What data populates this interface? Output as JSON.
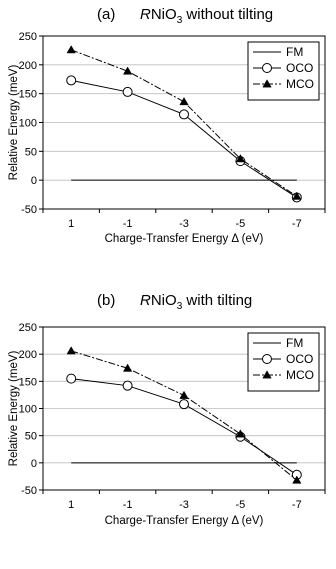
{
  "chart_data": [
    {
      "type": "line",
      "panel_label": "(a)",
      "title_prefix": "R",
      "title_main": "NiO",
      "title_sub": "3",
      "title_suffix": " without tilting",
      "xlabel": "Charge-Transfer Energy Δ (eV)",
      "ylabel": "Relative Energy (meV)",
      "categories": [
        "1",
        "-1",
        "-3",
        "-5",
        "-7"
      ],
      "ylim": [
        -50,
        250
      ],
      "yticks": [
        "-50",
        "0",
        "50",
        "100",
        "150",
        "200",
        "250"
      ],
      "grid": "horizontal",
      "legend_position": "top-right",
      "series": [
        {
          "name": "FM",
          "marker": "none",
          "line": "solid",
          "values": [
            0,
            0,
            0,
            0,
            0
          ]
        },
        {
          "name": "OCO",
          "marker": "open-circle",
          "line": "solid",
          "values": [
            173,
            153,
            114,
            33,
            -30
          ]
        },
        {
          "name": "MCO",
          "marker": "filled-triangle",
          "line": "dash-dot",
          "values": [
            226,
            189,
            136,
            37,
            -28
          ]
        }
      ]
    },
    {
      "type": "line",
      "panel_label": "(b)",
      "title_prefix": "R",
      "title_main": "NiO",
      "title_sub": "3",
      "title_suffix": " with tilting",
      "xlabel": "Charge-Transfer Energy Δ (eV)",
      "ylabel": "Relative Energy (meV)",
      "categories": [
        "1",
        "-1",
        "-3",
        "-5",
        "-7"
      ],
      "ylim": [
        -50,
        250
      ],
      "yticks": [
        "-50",
        "0",
        "50",
        "100",
        "150",
        "200",
        "250"
      ],
      "grid": "horizontal",
      "legend_position": "top-right",
      "series": [
        {
          "name": "FM",
          "marker": "none",
          "line": "solid",
          "values": [
            0,
            0,
            0,
            0,
            0
          ]
        },
        {
          "name": "OCO",
          "marker": "open-circle",
          "line": "solid",
          "values": [
            155,
            142,
            108,
            48,
            -22
          ]
        },
        {
          "name": "MCO",
          "marker": "filled-triangle",
          "line": "dash-dot",
          "values": [
            206,
            174,
            124,
            53,
            -32
          ]
        }
      ]
    }
  ]
}
